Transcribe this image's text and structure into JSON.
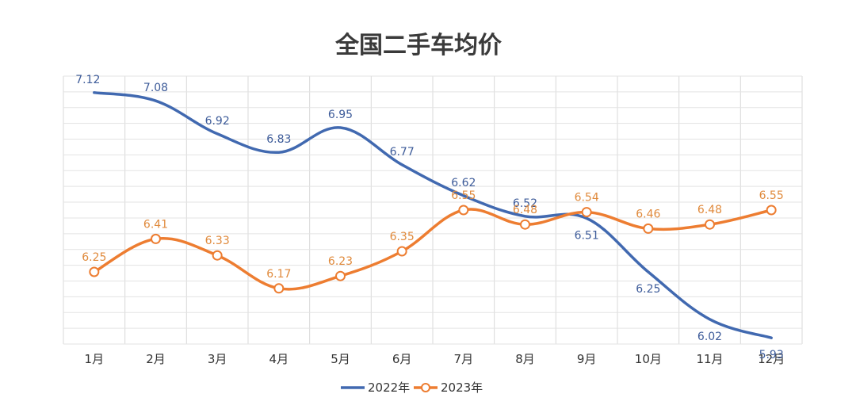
{
  "chart_data": {
    "type": "line",
    "title": "全国二手车均价",
    "xlabel": "",
    "ylabel": "",
    "categories": [
      "1月",
      "2月",
      "3月",
      "4月",
      "5月",
      "6月",
      "7月",
      "8月",
      "9月",
      "10月",
      "11月",
      "12月"
    ],
    "series": [
      {
        "name": "2022年",
        "values": [
          7.12,
          7.08,
          6.92,
          6.83,
          6.95,
          6.77,
          6.62,
          6.52,
          6.51,
          6.25,
          6.02,
          5.93
        ],
        "labels": [
          "7.12",
          "7.08",
          "6.92",
          "6.83",
          "6.95",
          "6.77",
          "6.62",
          "6.52",
          "6.51",
          "6.25",
          "6.02",
          "5.93"
        ],
        "color": "#4169b0"
      },
      {
        "name": "2023年",
        "values": [
          6.25,
          6.41,
          6.33,
          6.17,
          6.23,
          6.35,
          6.55,
          6.48,
          6.54,
          6.46,
          6.48,
          6.55
        ],
        "labels": [
          "6.25",
          "6.41",
          "6.33",
          "6.17",
          "6.23",
          "6.35",
          "6.55",
          "6.48",
          "6.54",
          "6.46",
          "6.48",
          "6.55"
        ],
        "color": "#ed7d31"
      }
    ],
    "ylim": [
      5.9,
      7.2
    ],
    "grid": true,
    "legend": "bottom-center"
  }
}
